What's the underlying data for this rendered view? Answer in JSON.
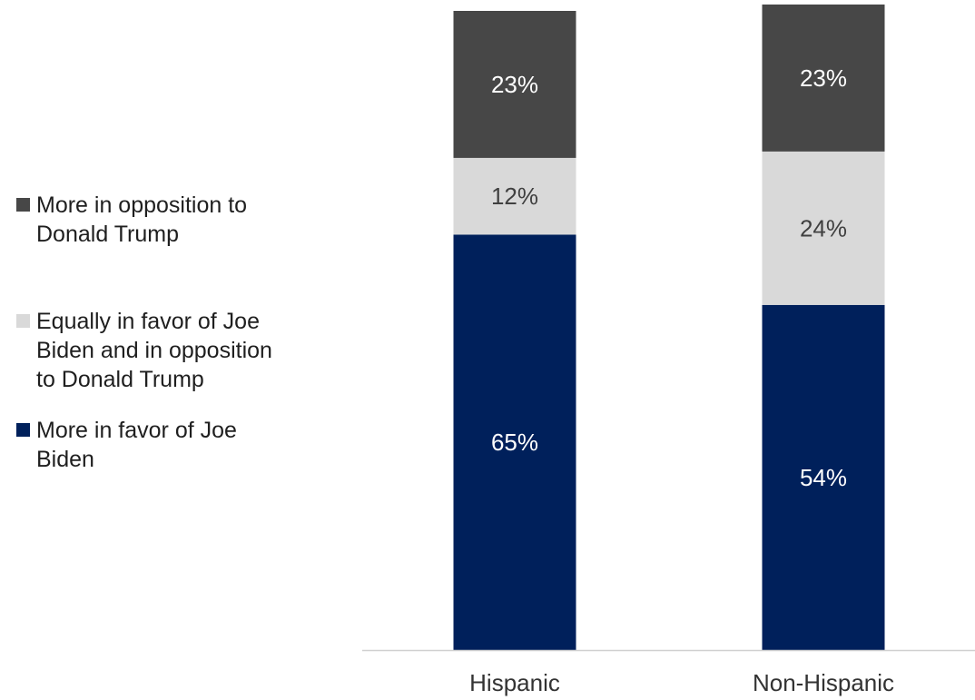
{
  "chart_data": {
    "type": "bar",
    "stacked": true,
    "categories": [
      "Hispanic",
      "Non-Hispanic"
    ],
    "series": [
      {
        "name": "More in favor of Joe Biden",
        "values": [
          65,
          54
        ],
        "labels": [
          "65%",
          "54%"
        ],
        "color": "#00205b",
        "label_color": "#ffffff"
      },
      {
        "name": "Equally in favor of Joe Biden and in opposition to Donald Trump",
        "values": [
          12,
          24
        ],
        "labels": [
          "12%",
          "24%"
        ],
        "color": "#d9d9d9",
        "label_color": "#404040"
      },
      {
        "name": "More in opposition to Donald Trump",
        "values": [
          23,
          23
        ],
        "labels": [
          "23%",
          "23%"
        ],
        "color": "#474747",
        "label_color": "#ffffff"
      }
    ],
    "ylim": [
      0,
      100
    ],
    "grid": false,
    "legend_position": "left"
  },
  "legend": [
    {
      "label": "More in opposition to\nDonald Trump",
      "color": "#474747"
    },
    {
      "label": "Equally in favor of Joe\nBiden and in opposition\nto Donald Trump",
      "color": "#d9d9d9"
    },
    {
      "label": "More in favor of Joe\nBiden",
      "color": "#00205b"
    }
  ]
}
